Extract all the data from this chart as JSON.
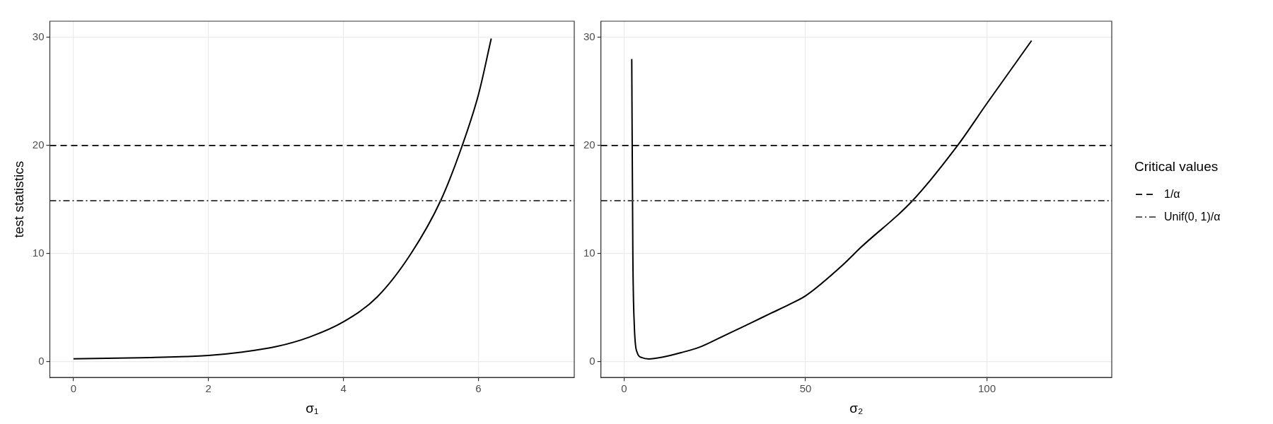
{
  "chart_data": [
    {
      "type": "line",
      "xlabel": "σ₁",
      "ylabel": "test statistics",
      "xlim": [
        -0.35,
        7.42
      ],
      "xticks": [
        0,
        2,
        4,
        6
      ],
      "ylim": [
        -1.45,
        31.5
      ],
      "yticks": [
        0,
        10,
        20,
        30
      ],
      "grid": true,
      "series": [
        {
          "color": "#000000",
          "x": [
            0,
            1,
            2,
            2.5,
            3,
            3.5,
            4,
            4.5,
            5,
            5.44,
            5.76,
            6,
            6.19
          ],
          "values": [
            0.28,
            0.38,
            0.59,
            0.9,
            1.4,
            2.3,
            3.7,
            6.0,
            10.0,
            14.9,
            20,
            24.7,
            29.9
          ]
        }
      ],
      "ref_lines": [
        {
          "axis": "y",
          "value": 20,
          "color": "#000000",
          "line_style": "dashed"
        },
        {
          "axis": "y",
          "value": 14.9,
          "color": "#444444",
          "line_style": "dashdot"
        }
      ]
    },
    {
      "type": "line",
      "xlabel": "σ₂",
      "xlim": [
        -6.4,
        134.4
      ],
      "xticks": [
        0,
        50,
        100
      ],
      "ylim": [
        -1.45,
        31.5
      ],
      "yticks": [
        0,
        10,
        20,
        30
      ],
      "grid": true,
      "legend": "right",
      "legend_title": "Critical values",
      "series": [
        {
          "color": "#000000",
          "x": [
            2.1,
            2.4,
            2.8,
            3.6,
            4.8,
            6.8,
            10.7,
            15.7,
            20.7,
            25.6,
            30.6,
            35.6,
            40.5,
            45.5,
            50,
            60.4,
            65.3,
            79.2,
            91.9,
            100,
            112.3
          ],
          "values": [
            28.0,
            10,
            3.4,
            0.85,
            0.4,
            0.27,
            0.44,
            0.85,
            1.35,
            2.1,
            2.9,
            3.7,
            4.5,
            5.3,
            6.1,
            9.0,
            10.6,
            14.8,
            20.0,
            23.9,
            29.7
          ]
        }
      ],
      "ref_lines": [
        {
          "axis": "y",
          "value": 20,
          "color": "#000000",
          "line_style": "dashed",
          "label": "1/α"
        },
        {
          "axis": "y",
          "value": 14.9,
          "color": "#444444",
          "line_style": "dashdot",
          "label": "Unif(0, 1)/α"
        }
      ]
    }
  ]
}
